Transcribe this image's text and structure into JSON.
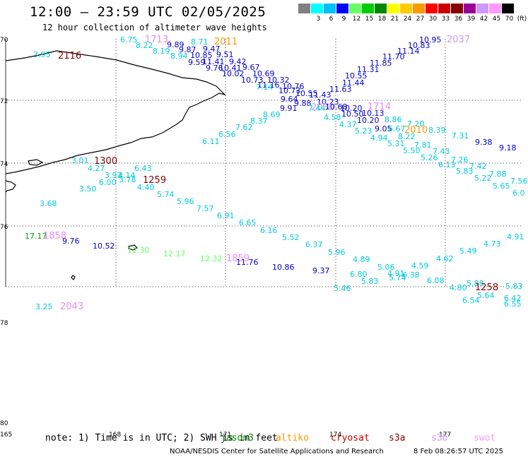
{
  "header": {
    "title": "12:00 – 23:59 UTC 02/05/2025",
    "subtitle": "12 hour collection of altimeter wave heights"
  },
  "colorbar": {
    "unit": "(ft)",
    "colors": [
      "#808080",
      "#00ffff",
      "#00bfff",
      "#0000ff",
      "#66ff66",
      "#00cc00",
      "#008800",
      "#ffff00",
      "#ffcc00",
      "#ff9900",
      "#ff0000",
      "#cc0000",
      "#880000",
      "#990099",
      "#cc99ff",
      "#ff99ff",
      "#000000"
    ],
    "labels": [
      "",
      "3",
      "6",
      "9",
      "12",
      "15",
      "18",
      "21",
      "24",
      "27",
      "30",
      "33",
      "36",
      "39",
      "42",
      "45",
      "70"
    ]
  },
  "map": {
    "lat_labels": [
      "70",
      "72",
      "74",
      "76",
      "78",
      "80"
    ],
    "lon_labels": [
      "165",
      "168",
      "171",
      "174",
      "177"
    ],
    "observations": [
      {
        "t": "6.75",
        "c": "#00ccdd"
      },
      {
        "t": "1713",
        "c": "#ee88ee"
      },
      {
        "t": "8.22",
        "c": "#00ccdd"
      },
      {
        "t": "8.19",
        "c": "#00ccdd"
      },
      {
        "t": "9.89",
        "c": "#0000cc"
      },
      {
        "t": "8.71",
        "c": "#00ccdd"
      },
      {
        "t": "2011",
        "c": "#ff9900"
      },
      {
        "t": "9.87",
        "c": "#0000cc"
      },
      {
        "t": "9.47",
        "c": "#0000cc"
      },
      {
        "t": "8.94",
        "c": "#00ccdd"
      },
      {
        "t": "10.85",
        "c": "#0000cc"
      },
      {
        "t": "9.51",
        "c": "#0000cc"
      },
      {
        "t": "9.59",
        "c": "#0000cc"
      },
      {
        "t": "11.41",
        "c": "#0000cc"
      },
      {
        "t": "9.42",
        "c": "#0000cc"
      },
      {
        "t": "9.76",
        "c": "#0000cc"
      },
      {
        "t": "10.41",
        "c": "#0000cc"
      },
      {
        "t": "9.67",
        "c": "#0000cc"
      },
      {
        "t": "10.02",
        "c": "#0000cc"
      },
      {
        "t": "10.69",
        "c": "#0000cc"
      },
      {
        "t": "10.73",
        "c": "#0000cc"
      },
      {
        "t": "10.32",
        "c": "#0000cc"
      },
      {
        "t": "11.16",
        "c": "#0000cc"
      },
      {
        "t": "10.76",
        "c": "#0000cc"
      },
      {
        "t": "7.14",
        "c": "#00ccdd"
      },
      {
        "t": "10.73",
        "c": "#0000cc"
      },
      {
        "t": "10.55",
        "c": "#0000cc"
      },
      {
        "t": "9.64",
        "c": "#0000cc"
      },
      {
        "t": "11.43",
        "c": "#0000cc"
      },
      {
        "t": "9.88",
        "c": "#0000cc"
      },
      {
        "t": "10.23",
        "c": "#0000cc"
      },
      {
        "t": "9.91",
        "c": "#0000cc"
      },
      {
        "t": "2030",
        "c": "#cc99ff"
      },
      {
        "t": "7.44",
        "c": "#00ccdd"
      },
      {
        "t": "10.68",
        "c": "#0000cc"
      },
      {
        "t": "10.20",
        "c": "#0000cc"
      },
      {
        "t": "11.63",
        "c": "#0000cc"
      },
      {
        "t": "11.44",
        "c": "#0000cc"
      },
      {
        "t": "10.55",
        "c": "#0000cc"
      },
      {
        "t": "11.31",
        "c": "#0000cc"
      },
      {
        "t": "11.85",
        "c": "#0000cc"
      },
      {
        "t": "11.70",
        "c": "#0000cc"
      },
      {
        "t": "11.14",
        "c": "#0000cc"
      },
      {
        "t": "10.83",
        "c": "#0000cc"
      },
      {
        "t": "10.95",
        "c": "#0000cc"
      },
      {
        "t": "2037",
        "c": "#cc99ff"
      },
      {
        "t": "1714",
        "c": "#ee88ee"
      },
      {
        "t": "10.50",
        "c": "#0000cc"
      },
      {
        "t": "10.13",
        "c": "#0000cc"
      },
      {
        "t": "10.20",
        "c": "#0000cc"
      },
      {
        "t": "4.58",
        "c": "#00ccdd"
      },
      {
        "t": "4.37",
        "c": "#00ccdd"
      },
      {
        "t": "5.23",
        "c": "#00ccdd"
      },
      {
        "t": "8.86",
        "c": "#00ccdd"
      },
      {
        "t": "9.05",
        "c": "#0000cc"
      },
      {
        "t": "6.67",
        "c": "#00ccdd"
      },
      {
        "t": "7.20",
        "c": "#00ccdd"
      },
      {
        "t": "2010",
        "c": "#ff9900"
      },
      {
        "t": "8.22",
        "c": "#00ccdd"
      },
      {
        "t": "4.94",
        "c": "#00ccdd"
      },
      {
        "t": "5.31",
        "c": "#00ccdd"
      },
      {
        "t": "7.81",
        "c": "#00ccdd"
      },
      {
        "t": "8.39",
        "c": "#00ccdd"
      },
      {
        "t": "7.31",
        "c": "#00ccdd"
      },
      {
        "t": "9.38",
        "c": "#0000cc"
      },
      {
        "t": "9.18",
        "c": "#0000cc"
      },
      {
        "t": "5.50",
        "c": "#00ccdd"
      },
      {
        "t": "7.43",
        "c": "#00ccdd"
      },
      {
        "t": "5.26",
        "c": "#00ccdd"
      },
      {
        "t": "7.26",
        "c": "#00ccdd"
      },
      {
        "t": "6.13",
        "c": "#00ccdd"
      },
      {
        "t": "7.42",
        "c": "#00ccdd"
      },
      {
        "t": "5.83",
        "c": "#00ccdd"
      },
      {
        "t": "7.88",
        "c": "#00ccdd"
      },
      {
        "t": "5.22",
        "c": "#00ccdd"
      },
      {
        "t": "7.56",
        "c": "#00ccdd"
      },
      {
        "t": "5.65",
        "c": "#00ccdd"
      },
      {
        "t": "6.0",
        "c": "#00ccdd"
      },
      {
        "t": "8.69",
        "c": "#00ccdd"
      },
      {
        "t": "8.37",
        "c": "#00ccdd"
      },
      {
        "t": "7.62",
        "c": "#00ccdd"
      },
      {
        "t": "6.56",
        "c": "#00ccdd"
      },
      {
        "t": "6.11",
        "c": "#00ccdd"
      },
      {
        "t": "3.95",
        "c": "#00ccdd"
      },
      {
        "t": "2116",
        "c": "#880000"
      },
      {
        "t": "3.01",
        "c": "#00ccdd"
      },
      {
        "t": "1300",
        "c": "#880000"
      },
      {
        "t": "4.27",
        "c": "#00ccdd"
      },
      {
        "t": "6.43",
        "c": "#00ccdd"
      },
      {
        "t": "3.92",
        "c": "#00ccdd"
      },
      {
        "t": "4.14",
        "c": "#00ccdd"
      },
      {
        "t": "6.00",
        "c": "#00ccdd"
      },
      {
        "t": "3.78",
        "c": "#00ccdd"
      },
      {
        "t": "1259",
        "c": "#880000"
      },
      {
        "t": "4.40",
        "c": "#00ccdd"
      },
      {
        "t": "3.50",
        "c": "#00ccdd"
      },
      {
        "t": "5.74",
        "c": "#00ccdd"
      },
      {
        "t": "5.96",
        "c": "#00ccdd"
      },
      {
        "t": "3.68",
        "c": "#00ccdd"
      },
      {
        "t": "7.57",
        "c": "#00ccdd"
      },
      {
        "t": "6.91",
        "c": "#00ccdd"
      },
      {
        "t": "6.65",
        "c": "#00ccdd"
      },
      {
        "t": "6.16",
        "c": "#00ccdd"
      },
      {
        "t": "5.52",
        "c": "#00ccdd"
      },
      {
        "t": "17.17",
        "c": "#00aa00"
      },
      {
        "t": "1858",
        "c": "#ee88ee"
      },
      {
        "t": "9.76",
        "c": "#0000cc"
      },
      {
        "t": "10.52",
        "c": "#0000cc"
      },
      {
        "t": "12.30",
        "c": "#66ff66"
      },
      {
        "t": "12.17",
        "c": "#66ff66"
      },
      {
        "t": "12.32",
        "c": "#66ff66"
      },
      {
        "t": "1859",
        "c": "#ee88ee"
      },
      {
        "t": "11.76",
        "c": "#0000cc"
      },
      {
        "t": "10.86",
        "c": "#0000cc"
      },
      {
        "t": "9.37",
        "c": "#0000cc"
      },
      {
        "t": "6.37",
        "c": "#00ccdd"
      },
      {
        "t": "5.96",
        "c": "#00ccdd"
      },
      {
        "t": "4.89",
        "c": "#00ccdd"
      },
      {
        "t": "6.80",
        "c": "#00ccdd"
      },
      {
        "t": "5.83",
        "c": "#00ccdd"
      },
      {
        "t": "5.46",
        "c": "#00ccdd"
      },
      {
        "t": "5.06",
        "c": "#00ccdd"
      },
      {
        "t": "4.91",
        "c": "#00ccdd"
      },
      {
        "t": "5.74",
        "c": "#00ccdd"
      },
      {
        "t": "6.38",
        "c": "#00ccdd"
      },
      {
        "t": "4.59",
        "c": "#00ccdd"
      },
      {
        "t": "4.62",
        "c": "#00ccdd"
      },
      {
        "t": "5.49",
        "c": "#00ccdd"
      },
      {
        "t": "4.73",
        "c": "#00ccdd"
      },
      {
        "t": "4.91",
        "c": "#00ccdd"
      },
      {
        "t": "6.08",
        "c": "#00ccdd"
      },
      {
        "t": "4.80",
        "c": "#00ccdd"
      },
      {
        "t": "5.88",
        "c": "#00ccdd"
      },
      {
        "t": "1258",
        "c": "#880000"
      },
      {
        "t": "5.83",
        "c": "#00ccdd"
      },
      {
        "t": "6.54",
        "c": "#00ccdd"
      },
      {
        "t": "5.64",
        "c": "#00ccdd"
      },
      {
        "t": "6.42",
        "c": "#00ccdd"
      },
      {
        "t": "6.55",
        "c": "#00ccdd"
      },
      {
        "t": "3.25",
        "c": "#00ccdd"
      },
      {
        "t": "2043",
        "c": "#ee88ee"
      }
    ]
  },
  "footer": {
    "note": "note: 1) Time is in UTC; 2) SWH is in feet",
    "satellites": [
      {
        "name": "jason3",
        "color": "#008800"
      },
      {
        "name": "altiko",
        "color": "#ff9900"
      },
      {
        "name": "cryosat",
        "color": "#cc0000"
      },
      {
        "name": "s3a",
        "color": "#880000"
      },
      {
        "name": "s3b",
        "color": "#cc99ff"
      },
      {
        "name": "swot",
        "color": "#ff99ff"
      }
    ],
    "credit": "NOAA/NESDIS Center for Satellite Applications and Research",
    "timestamp": "8 Feb 08:26:57 UTC 2025"
  }
}
